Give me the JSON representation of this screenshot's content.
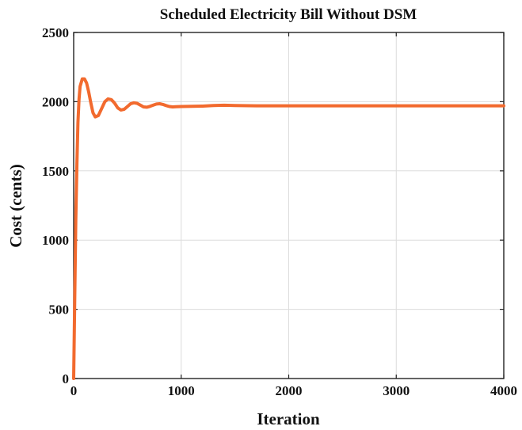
{
  "chart_data": {
    "type": "line",
    "title": "Scheduled Electricity Bill Without DSM",
    "xlabel": "Iteration",
    "ylabel": "Cost (cents)",
    "xlim": [
      0,
      4000
    ],
    "ylim": [
      0,
      2500
    ],
    "xticks": [
      0,
      1000,
      2000,
      3000,
      4000
    ],
    "yticks": [
      0,
      500,
      1000,
      1500,
      2000,
      2500
    ],
    "xtick_labels": [
      "0",
      "1000",
      "2000",
      "3000",
      "4000"
    ],
    "ytick_labels": [
      "0",
      "500",
      "1000",
      "1500",
      "2000",
      "2500"
    ],
    "grid": true,
    "legend": "none",
    "series": [
      {
        "color": "#f26a2e",
        "x": [
          0,
          10,
          20,
          30,
          40,
          50,
          60,
          80,
          100,
          120,
          140,
          160,
          180,
          200,
          230,
          260,
          290,
          320,
          350,
          380,
          410,
          440,
          470,
          500,
          530,
          560,
          590,
          620,
          650,
          680,
          710,
          740,
          770,
          800,
          830,
          860,
          890,
          920,
          950,
          1000,
          1100,
          1200,
          1300,
          1400,
          1500,
          1700,
          2000,
          2500,
          3000,
          3500,
          4000
        ],
        "y": [
          0,
          600,
          1150,
          1550,
          1850,
          2020,
          2110,
          2165,
          2165,
          2135,
          2070,
          1990,
          1920,
          1890,
          1900,
          1950,
          2000,
          2020,
          2015,
          1990,
          1955,
          1940,
          1945,
          1965,
          1985,
          1992,
          1988,
          1975,
          1962,
          1960,
          1966,
          1975,
          1983,
          1985,
          1980,
          1972,
          1965,
          1962,
          1964,
          1965,
          1966,
          1968,
          1972,
          1974,
          1972,
          1970,
          1970,
          1970,
          1970,
          1970,
          1970
        ]
      }
    ]
  }
}
